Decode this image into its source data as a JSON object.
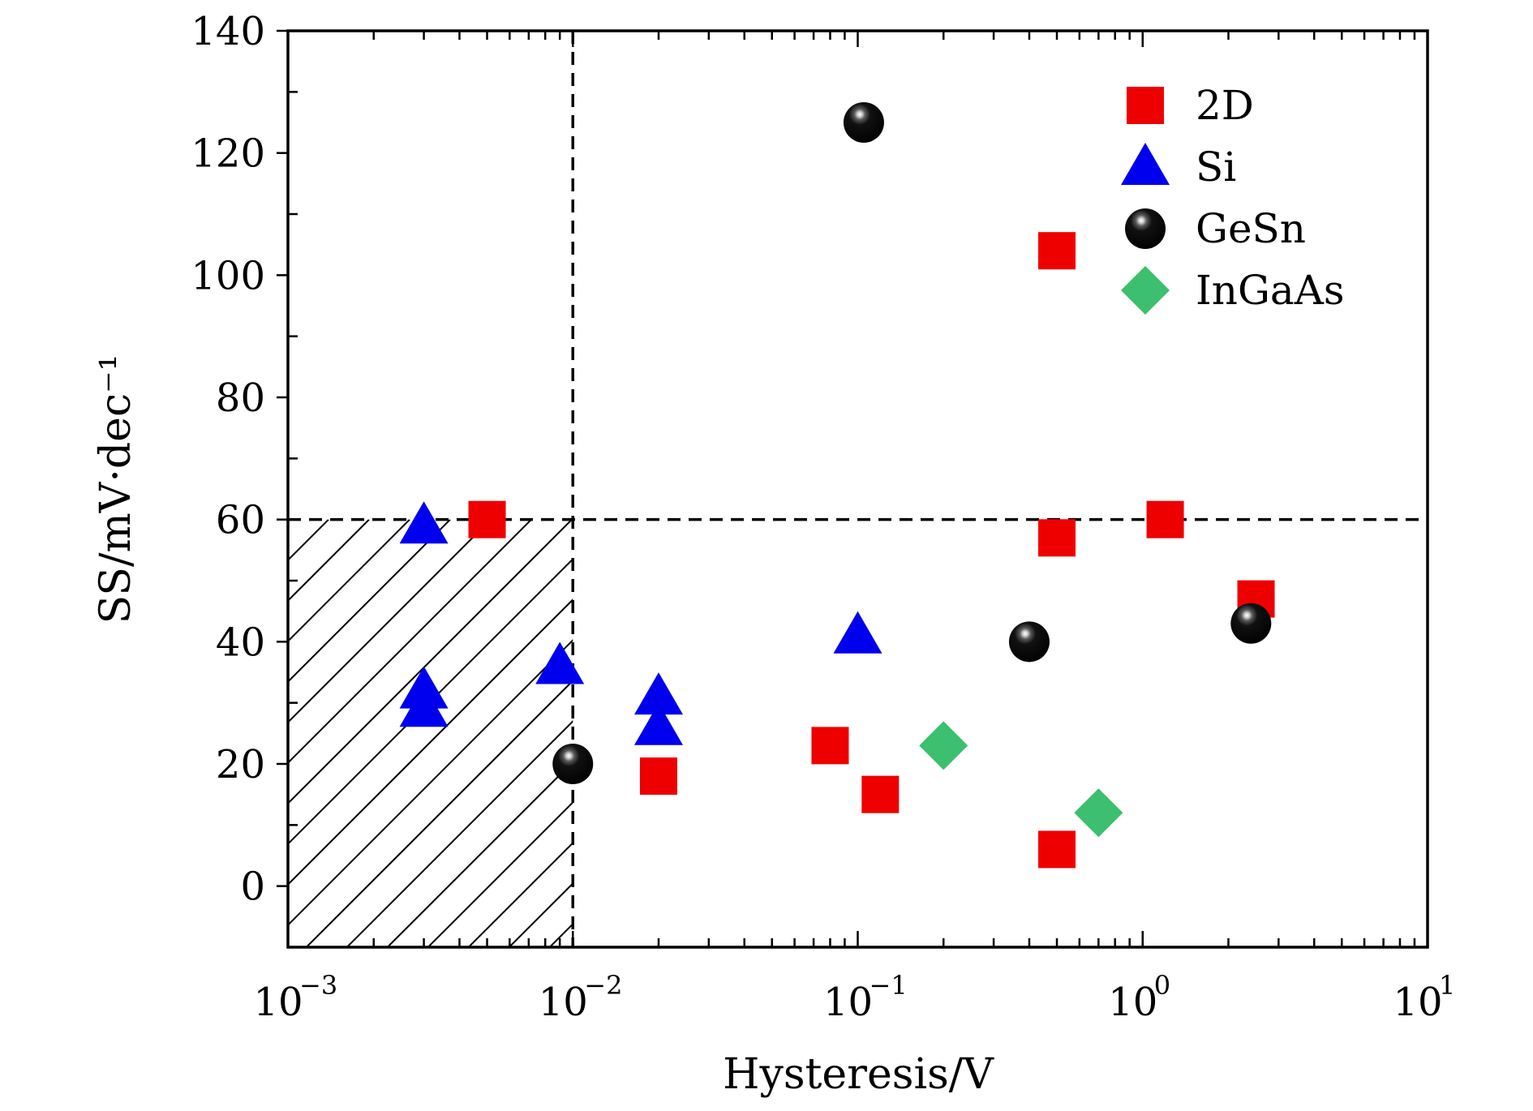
{
  "chart_data": {
    "type": "scatter",
    "title": "",
    "xlabel": "Hysteresis/V",
    "ylabel": "SS/mV·dec⁻¹",
    "x_scale": "log",
    "xlim": [
      0.001,
      10
    ],
    "ylim": [
      -10,
      140
    ],
    "x_ticks": [
      {
        "value": 0.001,
        "base": "10",
        "exp": "−3"
      },
      {
        "value": 0.01,
        "base": "10",
        "exp": "−2"
      },
      {
        "value": 0.1,
        "base": "10",
        "exp": "−1"
      },
      {
        "value": 1,
        "base": "10",
        "exp": "0"
      },
      {
        "value": 10,
        "base": "10",
        "exp": "1"
      }
    ],
    "y_ticks": [
      "0",
      "20",
      "40",
      "60",
      "80",
      "100",
      "120",
      "140"
    ],
    "grid": false,
    "legend_position": "top-right",
    "reference_lines": {
      "x": 0.01,
      "y": 60
    },
    "shaded_region": {
      "x": [
        0.001,
        0.01
      ],
      "y": [
        -10,
        60
      ],
      "pattern": "diagonal hatch"
    },
    "series": [
      {
        "name": "2D",
        "marker": "square",
        "color": "#ee0000",
        "points": [
          [
            0.005,
            60
          ],
          [
            0.02,
            18
          ],
          [
            0.08,
            23
          ],
          [
            0.12,
            15
          ],
          [
            0.5,
            104
          ],
          [
            0.5,
            57
          ],
          [
            0.5,
            6
          ],
          [
            1.2,
            60
          ],
          [
            2.5,
            47
          ]
        ]
      },
      {
        "name": "Si",
        "marker": "triangle",
        "color": "#0000ee",
        "points": [
          [
            0.003,
            59
          ],
          [
            0.003,
            32
          ],
          [
            0.003,
            29
          ],
          [
            0.009,
            36
          ],
          [
            0.02,
            31
          ],
          [
            0.02,
            26
          ],
          [
            0.1,
            41
          ]
        ]
      },
      {
        "name": "GeSn",
        "marker": "sphere",
        "color": "#000000",
        "points": [
          [
            0.01,
            20
          ],
          [
            0.105,
            125
          ],
          [
            0.4,
            40
          ],
          [
            2.4,
            43
          ]
        ]
      },
      {
        "name": "InGaAs",
        "marker": "diamond",
        "color": "#3cbf6e",
        "points": [
          [
            0.2,
            23
          ],
          [
            0.7,
            12
          ]
        ]
      }
    ]
  }
}
